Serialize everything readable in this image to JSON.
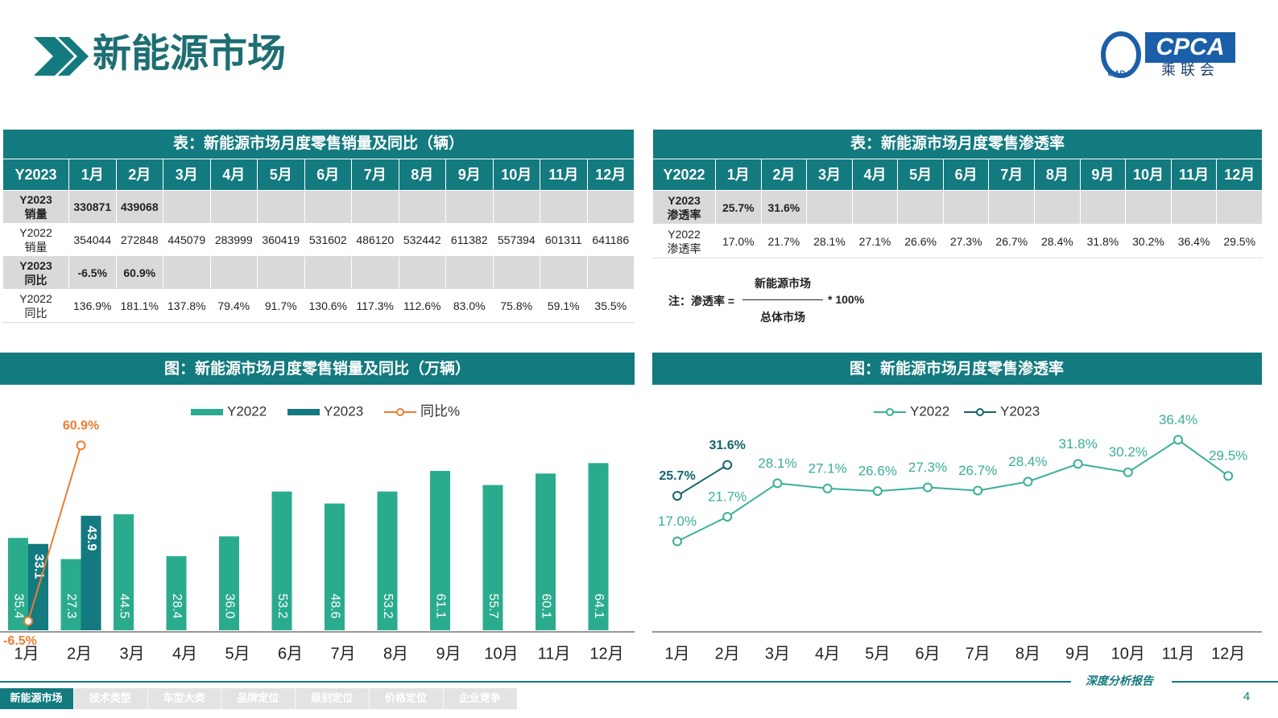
{
  "header": {
    "title": "新能源市场",
    "logo_text": "CPCA",
    "logo_cn": "乘联会",
    "logo_sub": "CADA"
  },
  "tables": [
    {
      "title": "表：新能源市场月度零售销量及同比（辆）",
      "header": [
        "Y2023",
        "1月",
        "2月",
        "3月",
        "4月",
        "5月",
        "6月",
        "7月",
        "8月",
        "9月",
        "10月",
        "11月",
        "12月"
      ],
      "rows": [
        {
          "label": "Y2023\n销量",
          "cells": [
            "330871",
            "439068"
          ]
        },
        {
          "label": "Y2022\n销量",
          "cells": [
            "354044",
            "272848",
            "445079",
            "283999",
            "360419",
            "531602",
            "486120",
            "532442",
            "611382",
            "557394",
            "601311",
            "641186"
          ]
        },
        {
          "label": "Y2023\n同比",
          "cells": [
            "-6.5%",
            "60.9%"
          ]
        },
        {
          "label": "Y2022\n同比",
          "cells": [
            "136.9%",
            "181.1%",
            "137.8%",
            "79.4%",
            "91.7%",
            "130.6%",
            "117.3%",
            "112.6%",
            "83.0%",
            "75.8%",
            "59.1%",
            "35.5%"
          ]
        }
      ]
    },
    {
      "title": "表：新能源市场月度零售渗透率",
      "header": [
        "Y2022",
        "1月",
        "2月",
        "3月",
        "4月",
        "5月",
        "6月",
        "7月",
        "8月",
        "9月",
        "10月",
        "11月",
        "12月"
      ],
      "rows": [
        {
          "label": "Y2023\n渗透率",
          "cells": [
            "25.7%",
            "31.6%"
          ]
        },
        {
          "label": "Y2022\n渗透率",
          "cells": [
            "17.0%",
            "21.7%",
            "28.1%",
            "27.1%",
            "26.6%",
            "27.3%",
            "26.7%",
            "28.4%",
            "31.8%",
            "30.2%",
            "36.4%",
            "29.5%"
          ]
        }
      ],
      "note": {
        "prefix": "注：渗透率 =",
        "numerator": "新能源市场",
        "denominator": "总体市场",
        "suffix": "* 100%"
      }
    }
  ],
  "chart_data": [
    {
      "type": "bar",
      "title": "图：新能源市场月度零售销量及同比（万辆）",
      "categories": [
        "1月",
        "2月",
        "3月",
        "4月",
        "5月",
        "6月",
        "7月",
        "8月",
        "9月",
        "10月",
        "11月",
        "12月"
      ],
      "series": [
        {
          "name": "Y2022",
          "type": "bar",
          "color": "#2bab8e",
          "values": [
            35.4,
            27.3,
            44.5,
            28.4,
            36.0,
            53.2,
            48.6,
            53.2,
            61.1,
            55.7,
            60.1,
            64.1
          ],
          "value_labels": [
            "35.4",
            "27.3",
            "44.5",
            "28.4",
            "36.0",
            "53.2",
            "48.6",
            "53.2",
            "61.1",
            "55.7",
            "60.1",
            "64.1"
          ]
        },
        {
          "name": "Y2023",
          "type": "bar",
          "color": "#137a7f",
          "values": [
            33.1,
            43.9,
            null,
            null,
            null,
            null,
            null,
            null,
            null,
            null,
            null,
            null
          ]
        },
        {
          "name": "同比%",
          "type": "line",
          "axis": "y2",
          "color": "#ed7d31",
          "values": [
            -6.5,
            60.9,
            null,
            null,
            null,
            null,
            null,
            null,
            null,
            null,
            null,
            null
          ],
          "value_labels": [
            "-6.5%",
            "60.9%",
            null,
            null,
            null,
            null,
            null,
            null,
            null,
            null,
            null,
            null
          ]
        }
      ],
      "ylim": [
        0,
        75
      ],
      "y2lim": [
        -10,
        65
      ],
      "legend": "top"
    },
    {
      "type": "line",
      "title": "图：新能源市场月度零售渗透率",
      "categories": [
        "1月",
        "2月",
        "3月",
        "4月",
        "5月",
        "6月",
        "7月",
        "8月",
        "9月",
        "10月",
        "11月",
        "12月"
      ],
      "series": [
        {
          "name": "Y2022",
          "color": "#3aae99",
          "values": [
            17.0,
            21.7,
            28.1,
            27.1,
            26.6,
            27.3,
            26.7,
            28.4,
            31.8,
            30.2,
            36.4,
            29.5
          ],
          "value_labels": [
            "17.0%",
            "21.7%",
            "28.1%",
            "27.1%",
            "26.6%",
            "27.3%",
            "26.7%",
            "28.4%",
            "31.8%",
            "30.2%",
            "36.4%",
            "29.5%"
          ]
        },
        {
          "name": "Y2023",
          "color": "#14646e",
          "values": [
            25.7,
            31.6,
            null,
            null,
            null,
            null,
            null,
            null,
            null,
            null,
            null,
            null
          ],
          "value_labels": [
            "25.7%",
            "31.6%",
            null,
            null,
            null,
            null,
            null,
            null,
            null,
            null,
            null,
            null
          ]
        }
      ],
      "ylim": [
        0,
        42
      ],
      "legend": "top"
    }
  ],
  "footer": {
    "tabs": [
      "新能源市场",
      "技术类型",
      "车型大类",
      "品牌定位",
      "级别定位",
      "价格定位",
      "企业竞争"
    ],
    "report": "深度分析报告",
    "page": "4"
  }
}
